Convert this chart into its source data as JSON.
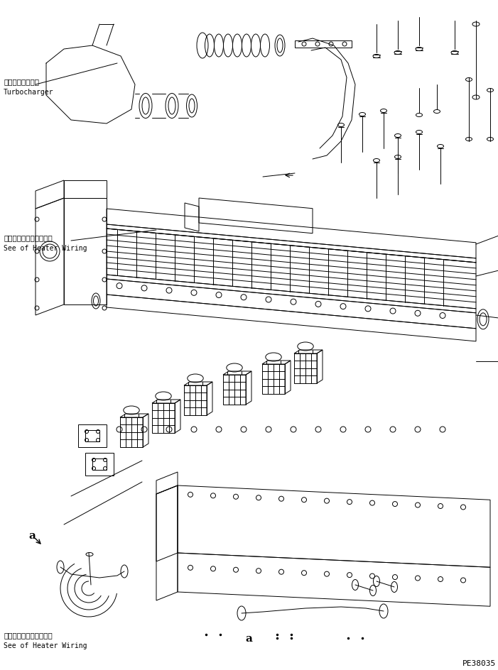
{
  "background_color": "#ffffff",
  "line_color": "#000000",
  "line_width": 0.7,
  "fig_width": 7.01,
  "fig_height": 9.45,
  "dpi": 100,
  "labels": {
    "turbocharger_jp": "ターボチャージャ",
    "turbocharger_en": "Turbocharger",
    "heater_wiring_jp1": "ヒータワイヤリング参照",
    "heater_wiring_en1": "See of Heater Wiring",
    "heater_wiring_jp2": "ヒータワイヤリング参照",
    "heater_wiring_en2": "See of Heater Wiring",
    "label_a1": "a",
    "label_a2": "a",
    "part_number": "PE38035"
  }
}
